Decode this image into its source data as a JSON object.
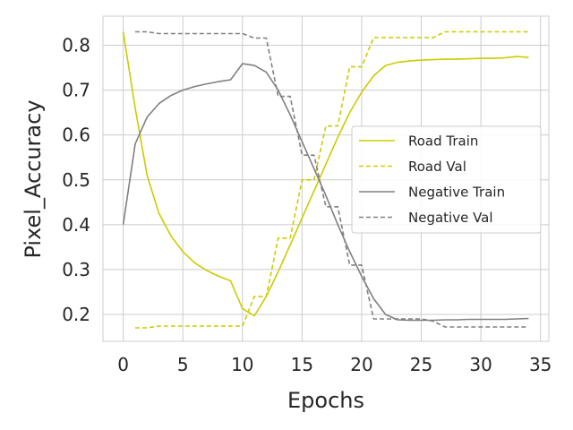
{
  "chart_data": {
    "type": "line",
    "title": "",
    "xlabel": "Epochs",
    "ylabel": "Pixel_Accuracy",
    "xlim": [
      -1.7,
      35.7
    ],
    "ylim": [
      0.14,
      0.865
    ],
    "xticks": [
      0,
      5,
      10,
      15,
      20,
      25,
      30,
      35
    ],
    "yticks": [
      0.2,
      0.3,
      0.4,
      0.5,
      0.6,
      0.7,
      0.8
    ],
    "ytick_labels": [
      "0.2",
      "0.3",
      "0.4",
      "0.5",
      "0.6",
      "0.7",
      "0.8"
    ],
    "grid": true,
    "legend_position": "center-right",
    "series": [
      {
        "name": "Road Train",
        "color": "#cccc00",
        "dash": "solid",
        "x": [
          0,
          1,
          2,
          3,
          4,
          5,
          6,
          7,
          8,
          9,
          10,
          11,
          12,
          13,
          14,
          15,
          16,
          17,
          18,
          19,
          20,
          21,
          22,
          23,
          24,
          25,
          26,
          27,
          28,
          29,
          30,
          31,
          32,
          33,
          34
        ],
        "values": [
          0.83,
          0.66,
          0.51,
          0.425,
          0.375,
          0.34,
          0.315,
          0.298,
          0.285,
          0.275,
          0.213,
          0.197,
          0.24,
          0.295,
          0.355,
          0.415,
          0.475,
          0.535,
          0.595,
          0.65,
          0.695,
          0.732,
          0.755,
          0.762,
          0.765,
          0.767,
          0.768,
          0.769,
          0.769,
          0.77,
          0.771,
          0.771,
          0.772,
          0.775,
          0.773
        ]
      },
      {
        "name": "Road Val",
        "color": "#cccc00",
        "dash": "dashed",
        "x": [
          1,
          2,
          3,
          4,
          5,
          6,
          7,
          8,
          9,
          10,
          11,
          12,
          13,
          14,
          15,
          16,
          17,
          18,
          19,
          20,
          21,
          22,
          23,
          24,
          25,
          26,
          27,
          28,
          29,
          30,
          31,
          32,
          33,
          34
        ],
        "values": [
          0.17,
          0.17,
          0.174,
          0.174,
          0.174,
          0.174,
          0.174,
          0.174,
          0.174,
          0.174,
          0.24,
          0.24,
          0.37,
          0.37,
          0.5,
          0.5,
          0.62,
          0.62,
          0.752,
          0.752,
          0.817,
          0.817,
          0.817,
          0.817,
          0.817,
          0.817,
          0.83,
          0.83,
          0.83,
          0.83,
          0.83,
          0.83,
          0.83,
          0.83
        ]
      },
      {
        "name": "Negative Train",
        "color": "#808080",
        "dash": "solid",
        "x": [
          0,
          1,
          2,
          3,
          4,
          5,
          6,
          7,
          8,
          9,
          10,
          11,
          12,
          13,
          14,
          15,
          16,
          17,
          18,
          19,
          20,
          21,
          22,
          23,
          24,
          25,
          26,
          27,
          28,
          29,
          30,
          31,
          32,
          33,
          34
        ],
        "values": [
          0.4,
          0.58,
          0.64,
          0.67,
          0.688,
          0.7,
          0.708,
          0.714,
          0.719,
          0.723,
          0.759,
          0.755,
          0.74,
          0.7,
          0.645,
          0.585,
          0.525,
          0.465,
          0.4,
          0.34,
          0.285,
          0.235,
          0.2,
          0.188,
          0.187,
          0.187,
          0.187,
          0.188,
          0.188,
          0.189,
          0.189,
          0.189,
          0.189,
          0.19,
          0.191
        ]
      },
      {
        "name": "Negative Val",
        "color": "#808080",
        "dash": "dashed",
        "x": [
          1,
          2,
          3,
          4,
          5,
          6,
          7,
          8,
          9,
          10,
          11,
          12,
          13,
          14,
          15,
          16,
          17,
          18,
          19,
          20,
          21,
          22,
          23,
          24,
          25,
          26,
          27,
          28,
          29,
          30,
          31,
          32,
          33,
          34
        ],
        "values": [
          0.83,
          0.83,
          0.826,
          0.826,
          0.826,
          0.826,
          0.826,
          0.826,
          0.826,
          0.826,
          0.816,
          0.816,
          0.686,
          0.686,
          0.555,
          0.555,
          0.44,
          0.44,
          0.31,
          0.31,
          0.19,
          0.19,
          0.19,
          0.19,
          0.19,
          0.185,
          0.172,
          0.172,
          0.172,
          0.172,
          0.172,
          0.172,
          0.172,
          0.172
        ]
      }
    ]
  }
}
